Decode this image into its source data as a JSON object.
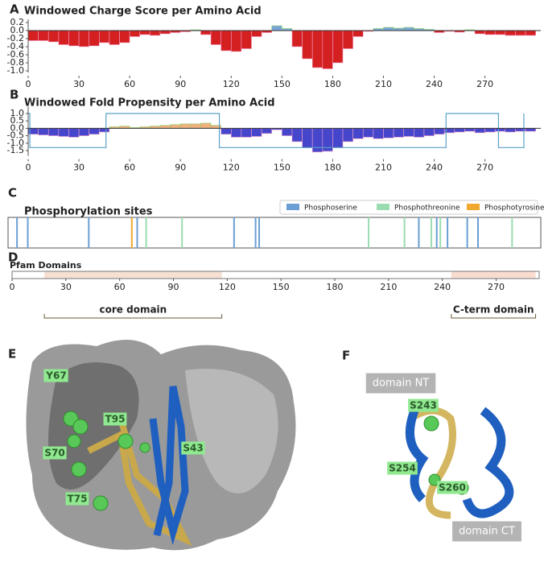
{
  "chart_data": [
    {
      "type": "bar",
      "panel": "A",
      "title": "Windowed Charge Score per Amino Acid",
      "x": [
        0,
        6,
        12,
        18,
        24,
        30,
        36,
        42,
        48,
        54,
        60,
        66,
        72,
        78,
        84,
        90,
        96,
        102,
        108,
        114,
        120,
        126,
        132,
        138,
        144,
        150,
        156,
        162,
        168,
        174,
        180,
        186,
        192,
        198,
        204,
        210,
        216,
        222,
        228,
        234,
        240,
        246,
        252,
        258,
        264,
        270,
        276,
        282,
        288,
        294
      ],
      "values": [
        -0.25,
        -0.25,
        -0.28,
        -0.35,
        -0.38,
        -0.4,
        -0.38,
        -0.3,
        -0.35,
        -0.3,
        -0.15,
        -0.1,
        -0.12,
        -0.08,
        -0.05,
        -0.03,
        0.02,
        -0.1,
        -0.35,
        -0.5,
        -0.52,
        -0.45,
        -0.15,
        -0.05,
        0.12,
        0.05,
        -0.4,
        -0.7,
        -0.92,
        -0.95,
        -0.8,
        -0.45,
        -0.15,
        -0.02,
        0.05,
        0.08,
        0.06,
        0.08,
        0.05,
        0.03,
        -0.05,
        -0.02,
        -0.04,
        0.02,
        -0.08,
        -0.1,
        -0.1,
        -0.12,
        -0.12,
        -0.12
      ],
      "color_positive": "#7aa6d8",
      "color_negative": "#d42020",
      "xlim": [
        0,
        303
      ],
      "xticks": [
        0,
        30,
        60,
        90,
        120,
        150,
        180,
        210,
        240,
        270
      ],
      "ylim": [
        -1.0,
        0.2
      ],
      "yticks": [
        0.2,
        {
          "value": 0,
          "label": "0.0"
        },
        -0.2,
        -0.4,
        -0.6,
        -0.8,
        {
          "value": -1,
          "label": "-1.0"
        }
      ]
    },
    {
      "type": "bar",
      "panel": "B",
      "title": "Windowed Fold Propensity per Amino Acid",
      "x": [
        0,
        6,
        12,
        18,
        24,
        30,
        36,
        42,
        48,
        54,
        60,
        66,
        72,
        78,
        84,
        90,
        96,
        102,
        108,
        114,
        120,
        126,
        132,
        138,
        144,
        150,
        156,
        162,
        168,
        174,
        180,
        186,
        192,
        198,
        204,
        210,
        216,
        222,
        228,
        234,
        240,
        246,
        252,
        258,
        264,
        270,
        276,
        282,
        288,
        294
      ],
      "values": [
        -0.4,
        -0.45,
        -0.5,
        -0.55,
        -0.6,
        -0.5,
        -0.4,
        -0.25,
        0.1,
        0.15,
        0.05,
        0.1,
        0.15,
        0.2,
        0.25,
        0.3,
        0.3,
        0.35,
        0.2,
        -0.4,
        -0.6,
        -0.6,
        -0.55,
        -0.35,
        -0.1,
        -0.5,
        -0.9,
        -1.3,
        -1.6,
        -1.55,
        -1.3,
        -0.9,
        -0.7,
        -0.6,
        -0.7,
        -0.65,
        -0.6,
        -0.55,
        -0.6,
        -0.5,
        -0.4,
        -0.3,
        -0.25,
        -0.2,
        -0.3,
        -0.25,
        -0.2,
        -0.25,
        -0.2,
        -0.2
      ],
      "color_positive": "#f0b080",
      "color_negative": "#4646cc",
      "step": {
        "color": "#5aa0c8",
        "x": [
          0,
          1,
          1,
          46,
          46,
          113,
          113,
          247,
          247,
          278,
          278,
          293,
          293
        ],
        "values": [
          1.0,
          1.0,
          -1.3,
          -1.3,
          1.0,
          1.0,
          -1.3,
          -1.3,
          1.0,
          1.0,
          -1.3,
          -1.3,
          1.0
        ]
      },
      "xlim": [
        0,
        303
      ],
      "xticks": [
        0,
        30,
        60,
        90,
        120,
        150,
        180,
        210,
        240,
        270
      ],
      "ylim": [
        -1.75,
        1.25
      ],
      "yticks": [
        {
          "value": 1,
          "label": "1.0"
        },
        0.5,
        {
          "value": 0,
          "label": "0.0"
        },
        -0.5,
        {
          "value": -1,
          "label": "-1.0"
        },
        -1.5
      ]
    },
    {
      "type": "events",
      "panel": "C",
      "title": "Phosphorylation sites",
      "xlim": [
        -2,
        295
      ],
      "series": [
        {
          "name": "Phosphoserine",
          "color": "#6a9fd4",
          "values": [
            3,
            9,
            43,
            70,
            124,
            136,
            138,
            227,
            237,
            243,
            254,
            260
          ]
        },
        {
          "name": "Phosphothreonine",
          "color": "#9adcb0",
          "values": [
            75,
            95,
            199,
            219,
            234,
            239,
            279
          ]
        },
        {
          "name": "Phosphotyrosine",
          "color": "#f0a830",
          "values": [
            67
          ]
        }
      ]
    },
    {
      "type": "domains",
      "panel": "D",
      "title": "Pfam Domains",
      "xlim": [
        0,
        294
      ],
      "xticks": [
        0,
        30,
        60,
        90,
        120,
        150,
        180,
        210,
        240,
        270
      ],
      "domains": [
        {
          "name": "core domain",
          "start": 18,
          "end": 117,
          "color": "#f6e0d2"
        },
        {
          "name": "C-term domain",
          "start": 245,
          "end": 292,
          "color": "#f9dcd0"
        }
      ]
    }
  ],
  "structures": [
    {
      "panel": "E",
      "labels": [
        "Y67",
        "T95",
        "S70",
        "S43",
        "T75"
      ]
    },
    {
      "panel": "F",
      "labels": [
        "domain NT",
        "S243",
        "S254",
        "S260",
        "domain CT"
      ]
    }
  ]
}
